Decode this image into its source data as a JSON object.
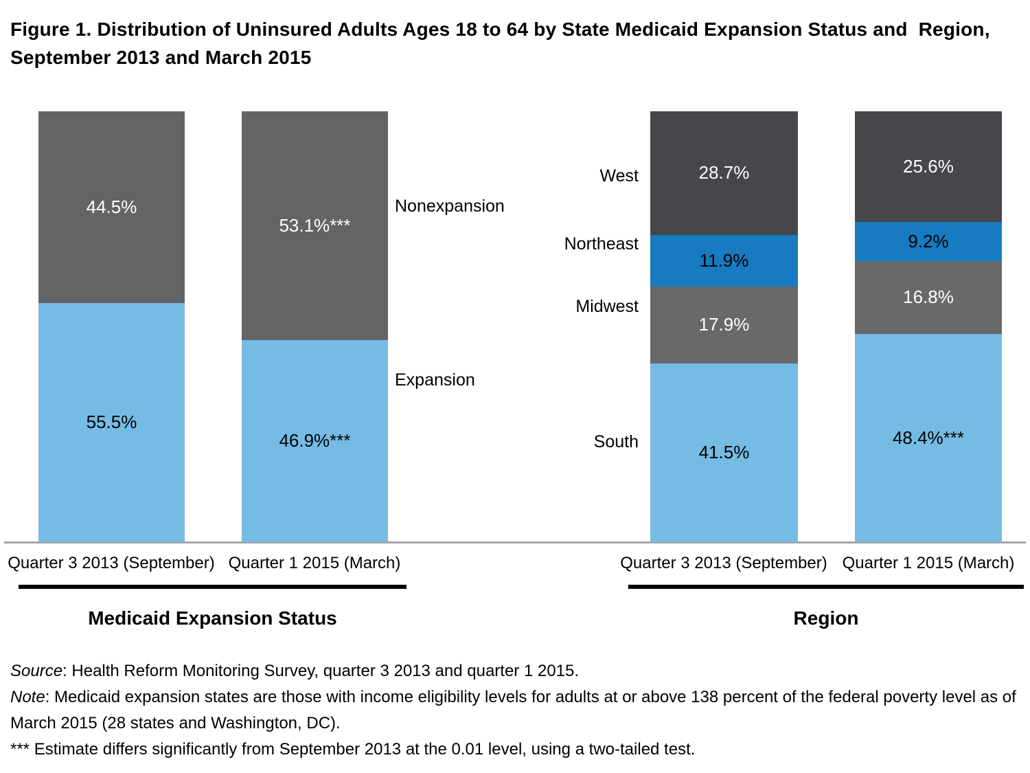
{
  "figure": {
    "title": "Figure 1. Distribution of Uninsured Adults Ages 18 to 64 by State Medicaid Expansion Status and  Region, September 2013 and March 2015"
  },
  "colors": {
    "light_blue": "#75BBE4",
    "dark_gray": "#636466",
    "medium_gray": "#68696B",
    "charcoal": "#46474B",
    "accent_blue": "#187AC0",
    "axis_line": "#A6A6A6",
    "group_underline": "#000000"
  },
  "chart_data": [
    {
      "type": "bar",
      "stacked": true,
      "unit": "percent",
      "ylim": [
        0,
        100
      ],
      "grid": false,
      "legend_position": "right-of-bars",
      "group_title": "Medicaid Expansion Status",
      "categories": [
        "Quarter 3 2013 (September)",
        "Quarter 1 2015 (March)"
      ],
      "series": [
        {
          "name": "Expansion",
          "color": "#75BBE4",
          "label_color": "#000000",
          "values": [
            55.5,
            46.9
          ],
          "labels": [
            "55.5%",
            "46.9%***"
          ]
        },
        {
          "name": "Nonexpansion",
          "color": "#636466",
          "label_color": "#FFFFFF",
          "values": [
            44.5,
            53.1
          ],
          "labels": [
            "44.5%",
            "53.1%***"
          ]
        }
      ]
    },
    {
      "type": "bar",
      "stacked": true,
      "unit": "percent",
      "ylim": [
        0,
        100
      ],
      "grid": false,
      "legend_position": "left-of-bars",
      "group_title": "Region",
      "categories": [
        "Quarter 3 2013 (September)",
        "Quarter 1 2015 (March)"
      ],
      "series": [
        {
          "name": "South",
          "color": "#75BBE4",
          "label_color": "#000000",
          "values": [
            41.5,
            48.4
          ],
          "labels": [
            "41.5%",
            "48.4%***"
          ]
        },
        {
          "name": "Midwest",
          "color": "#68696B",
          "label_color": "#FFFFFF",
          "values": [
            17.9,
            16.8
          ],
          "labels": [
            "17.9%",
            "16.8%"
          ]
        },
        {
          "name": "Northeast",
          "color": "#187AC0",
          "label_color": "#000000",
          "values": [
            11.9,
            9.2
          ],
          "labels": [
            "11.9%",
            "9.2%"
          ]
        },
        {
          "name": "West",
          "color": "#46474B",
          "label_color": "#FFFFFF",
          "values": [
            28.7,
            25.6
          ],
          "labels": [
            "28.7%",
            "25.6%"
          ]
        }
      ]
    }
  ],
  "footer": {
    "source_prefix": "Source",
    "source_text": ": Health Reform Monitoring Survey, quarter 3 2013 and quarter 1 2015.",
    "note_prefix": "Note",
    "note_text": ": Medicaid expansion states are those with income eligibility levels for adults at or above 138 percent of the federal poverty level as of March 2015 (28 states and Washington, DC).",
    "significance_text": "*** Estimate differs significantly from September 2013 at the 0.01 level, using a two-tailed test."
  }
}
